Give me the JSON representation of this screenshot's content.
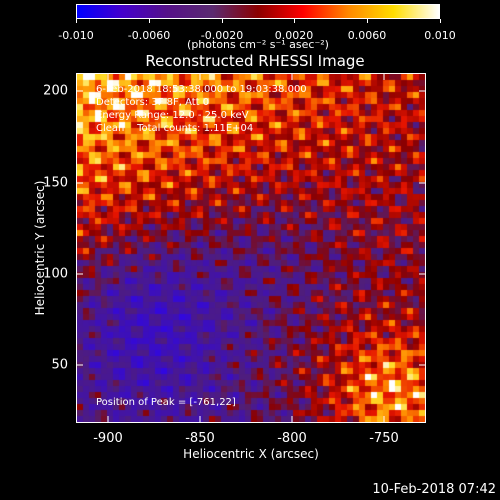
{
  "colorbar": {
    "tick_labels": [
      "-0.010",
      "-0.0060",
      "-0.0020",
      "0.0020",
      "0.0060",
      "0.010"
    ],
    "units": "(photons cm⁻² s⁻¹ asec⁻²)",
    "colors": [
      "#0000ff",
      "#4400cc",
      "#551188",
      "#5a2a70",
      "#8b0000",
      "#ff0000",
      "#ff8800",
      "#ffdd00",
      "#ffffff"
    ]
  },
  "title": "Reconstructed RHESSI Image",
  "annotations": {
    "time_range": "6-Feb-2018 18:53:38.000 to 19:03:38.000",
    "detectors": "Detectors: 3F 8F, Att 0",
    "energy": "Energy Range: 12.0 - 25.0 keV",
    "clean": "Clean    Total counts: 1.11E+04",
    "peak": "Position of Peak = [-761,22]"
  },
  "axes": {
    "xlabel": "Heliocentric X (arcsec)",
    "ylabel": "Heliocentric Y (arcsec)",
    "xticks": [
      "-900",
      "-850",
      "-800",
      "-750"
    ],
    "yticks": [
      "50",
      "100",
      "150",
      "200"
    ],
    "xlim": [
      -917,
      -727
    ],
    "ylim": [
      15,
      210
    ]
  },
  "timestamp": "10-Feb-2018 07:42"
}
